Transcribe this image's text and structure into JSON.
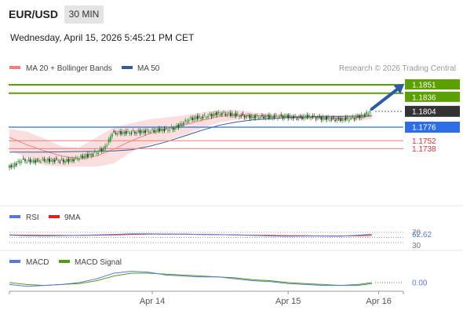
{
  "header": {
    "pair": "EUR/USD",
    "timeframe": "30 MIN",
    "datetime": "Wednesday, April 15, 2026 5:45:21 PM CET"
  },
  "legend": {
    "ma20": "MA 20 + Bollinger Bands",
    "ma50": "MA 50",
    "credit": "Research © 2026 Trading Central",
    "ma20_color": "#f08080",
    "ma50_color": "#3a5a98"
  },
  "chart_data": [
    {
      "type": "candlestick",
      "x_labels": [
        "Apr 14",
        "Apr 15",
        "Apr 16"
      ],
      "ylim": [
        1.17,
        1.186
      ],
      "current_price": "1.1804",
      "levels": [
        {
          "label": "1.1851",
          "value": 1.1851,
          "color": "#5aa000",
          "kind": "resistance"
        },
        {
          "label": "1.1836",
          "value": 1.1836,
          "color": "#5aa000",
          "kind": "resistance"
        },
        {
          "label": "1.1776",
          "value": 1.1776,
          "color": "#2d6ee6",
          "kind": "pivot"
        },
        {
          "label": "1.1752",
          "value": 1.1752,
          "color": "#e03030",
          "kind": "support"
        },
        {
          "label": "1.1738",
          "value": 1.1738,
          "color": "#e03030",
          "kind": "support"
        }
      ],
      "price_path": [
        [
          0,
          1.1704
        ],
        [
          4,
          1.171
        ],
        [
          8,
          1.1718
        ],
        [
          12,
          1.1716
        ],
        [
          16,
          1.1716
        ],
        [
          20,
          1.1718
        ],
        [
          24,
          1.1717
        ],
        [
          28,
          1.1718
        ],
        [
          32,
          1.1716
        ],
        [
          36,
          1.1718
        ],
        [
          40,
          1.1721
        ],
        [
          44,
          1.1725
        ],
        [
          48,
          1.1728
        ],
        [
          52,
          1.1733
        ],
        [
          56,
          1.1741
        ],
        [
          60,
          1.1766
        ],
        [
          64,
          1.1766
        ],
        [
          68,
          1.1767
        ],
        [
          72,
          1.1767
        ],
        [
          76,
          1.1768
        ],
        [
          80,
          1.1769
        ],
        [
          84,
          1.177
        ],
        [
          88,
          1.1772
        ],
        [
          92,
          1.1772
        ],
        [
          96,
          1.1775
        ],
        [
          100,
          1.1782
        ],
        [
          104,
          1.179
        ],
        [
          108,
          1.1793
        ],
        [
          112,
          1.1794
        ],
        [
          116,
          1.1797
        ],
        [
          120,
          1.18
        ],
        [
          124,
          1.18
        ],
        [
          128,
          1.1799
        ],
        [
          132,
          1.1797
        ],
        [
          136,
          1.1796
        ],
        [
          140,
          1.1794
        ],
        [
          144,
          1.1794
        ],
        [
          148,
          1.1795
        ],
        [
          152,
          1.1794
        ],
        [
          156,
          1.1795
        ],
        [
          160,
          1.1795
        ],
        [
          164,
          1.1793
        ],
        [
          168,
          1.1793
        ],
        [
          172,
          1.1795
        ],
        [
          176,
          1.1794
        ],
        [
          180,
          1.1792
        ],
        [
          184,
          1.1791
        ],
        [
          188,
          1.179
        ],
        [
          192,
          1.179
        ],
        [
          196,
          1.1791
        ],
        [
          200,
          1.1794
        ],
        [
          204,
          1.1796
        ],
        [
          208,
          1.1804
        ]
      ],
      "ma50": [
        [
          0,
          1.1732
        ],
        [
          20,
          1.1732
        ],
        [
          40,
          1.1733
        ],
        [
          60,
          1.1734
        ],
        [
          70,
          1.1736
        ],
        [
          80,
          1.1742
        ],
        [
          90,
          1.175
        ],
        [
          100,
          1.176
        ],
        [
          110,
          1.177
        ],
        [
          120,
          1.1779
        ],
        [
          130,
          1.1785
        ],
        [
          140,
          1.1789
        ],
        [
          150,
          1.1791
        ],
        [
          160,
          1.1793
        ],
        [
          170,
          1.1794
        ],
        [
          180,
          1.1795
        ],
        [
          190,
          1.1795
        ],
        [
          208,
          1.1796
        ]
      ],
      "ma20": [
        [
          0,
          1.1758
        ],
        [
          10,
          1.1745
        ],
        [
          20,
          1.1734
        ],
        [
          30,
          1.1725
        ],
        [
          40,
          1.172
        ],
        [
          50,
          1.1725
        ],
        [
          60,
          1.1737
        ],
        [
          70,
          1.1752
        ],
        [
          80,
          1.1764
        ],
        [
          90,
          1.1773
        ],
        [
          100,
          1.178
        ],
        [
          110,
          1.1788
        ],
        [
          120,
          1.1795
        ],
        [
          130,
          1.1797
        ],
        [
          140,
          1.1797
        ],
        [
          150,
          1.1796
        ],
        [
          160,
          1.1795
        ],
        [
          170,
          1.1794
        ],
        [
          180,
          1.1793
        ],
        [
          190,
          1.1792
        ],
        [
          200,
          1.1793
        ],
        [
          208,
          1.1796
        ]
      ],
      "bb_upper": [
        [
          0,
          1.1773
        ],
        [
          10,
          1.1768
        ],
        [
          20,
          1.1756
        ],
        [
          30,
          1.1742
        ],
        [
          40,
          1.174
        ],
        [
          50,
          1.1758
        ],
        [
          60,
          1.1776
        ],
        [
          70,
          1.1783
        ],
        [
          80,
          1.179
        ],
        [
          90,
          1.1793
        ],
        [
          100,
          1.1797
        ],
        [
          110,
          1.1802
        ],
        [
          120,
          1.1806
        ],
        [
          130,
          1.1807
        ],
        [
          140,
          1.1802
        ],
        [
          150,
          1.18
        ],
        [
          160,
          1.1799
        ],
        [
          170,
          1.1798
        ],
        [
          180,
          1.1797
        ],
        [
          190,
          1.1796
        ],
        [
          200,
          1.1799
        ],
        [
          208,
          1.1802
        ]
      ],
      "bb_lower": [
        [
          0,
          1.1735
        ],
        [
          10,
          1.1722
        ],
        [
          20,
          1.1708
        ],
        [
          30,
          1.1706
        ],
        [
          40,
          1.1706
        ],
        [
          50,
          1.1706
        ],
        [
          60,
          1.1712
        ],
        [
          70,
          1.1732
        ],
        [
          80,
          1.1745
        ],
        [
          90,
          1.1752
        ],
        [
          100,
          1.1762
        ],
        [
          110,
          1.1774
        ],
        [
          120,
          1.1784
        ],
        [
          130,
          1.1789
        ],
        [
          140,
          1.1791
        ],
        [
          150,
          1.1792
        ],
        [
          160,
          1.1791
        ],
        [
          170,
          1.179
        ],
        [
          180,
          1.1789
        ],
        [
          190,
          1.1788
        ],
        [
          200,
          1.1788
        ],
        [
          208,
          1.179
        ]
      ],
      "forecast_arrow": {
        "from": [
          208,
          1.1808
        ],
        "to": [
          226,
          1.1851
        ]
      }
    },
    {
      "type": "line",
      "title": "RSI",
      "legend": [
        "RSI",
        "9MA"
      ],
      "colors": {
        "RSI": "#5a78d8",
        "9MA": "#e02020"
      },
      "ylim": [
        25,
        75
      ],
      "levels": [
        "70",
        "50",
        "30"
      ],
      "value_label": "62.62",
      "rsi": [
        [
          0,
          59
        ],
        [
          10,
          57
        ],
        [
          20,
          56
        ],
        [
          30,
          57
        ],
        [
          40,
          58
        ],
        [
          50,
          60
        ],
        [
          60,
          62
        ],
        [
          70,
          64
        ],
        [
          80,
          64
        ],
        [
          90,
          63
        ],
        [
          100,
          63
        ],
        [
          110,
          62
        ],
        [
          120,
          61
        ],
        [
          130,
          60
        ],
        [
          140,
          58
        ],
        [
          150,
          56
        ],
        [
          160,
          55
        ],
        [
          170,
          56
        ],
        [
          180,
          56
        ],
        [
          190,
          55
        ],
        [
          200,
          59
        ],
        [
          208,
          62.62
        ]
      ],
      "ma9": [
        [
          0,
          60
        ],
        [
          10,
          59
        ],
        [
          20,
          58
        ],
        [
          30,
          58
        ],
        [
          40,
          58
        ],
        [
          50,
          59
        ],
        [
          60,
          60
        ],
        [
          70,
          62
        ],
        [
          80,
          63
        ],
        [
          90,
          63
        ],
        [
          100,
          63
        ],
        [
          110,
          62
        ],
        [
          120,
          61
        ],
        [
          130,
          60
        ],
        [
          140,
          59
        ],
        [
          150,
          58
        ],
        [
          160,
          57
        ],
        [
          170,
          57
        ],
        [
          180,
          56
        ],
        [
          190,
          56
        ],
        [
          200,
          57
        ],
        [
          208,
          58
        ]
      ]
    },
    {
      "type": "line",
      "title": "MACD",
      "legend": [
        "MACD",
        "MACD Signal"
      ],
      "colors": {
        "MACD": "#5a78d8",
        "MACD Signal": "#50a010"
      },
      "ylim": [
        -0.001,
        0.0018
      ],
      "value_label": "0.00",
      "macd": [
        [
          0,
          -0.0002
        ],
        [
          10,
          -0.0004
        ],
        [
          20,
          -0.0003
        ],
        [
          30,
          -0.0002
        ],
        [
          40,
          0.0
        ],
        [
          50,
          0.0004
        ],
        [
          60,
          0.001
        ],
        [
          70,
          0.0012
        ],
        [
          80,
          0.0011
        ],
        [
          90,
          0.0008
        ],
        [
          100,
          0.0007
        ],
        [
          110,
          0.0006
        ],
        [
          120,
          0.0006
        ],
        [
          130,
          0.0004
        ],
        [
          140,
          0.0002
        ],
        [
          150,
          0.0001
        ],
        [
          160,
          -0.0001
        ],
        [
          170,
          -0.0002
        ],
        [
          180,
          -0.0003
        ],
        [
          190,
          -0.0003
        ],
        [
          200,
          -0.0002
        ],
        [
          208,
          0.0
        ]
      ],
      "signal": [
        [
          0,
          0.0
        ],
        [
          10,
          -0.0002
        ],
        [
          20,
          -0.0003
        ],
        [
          30,
          -0.0002
        ],
        [
          40,
          -0.0001
        ],
        [
          50,
          0.0002
        ],
        [
          60,
          0.0007
        ],
        [
          70,
          0.001
        ],
        [
          80,
          0.001
        ],
        [
          90,
          0.0009
        ],
        [
          100,
          0.0008
        ],
        [
          110,
          0.0007
        ],
        [
          120,
          0.0006
        ],
        [
          130,
          0.0005
        ],
        [
          140,
          0.0003
        ],
        [
          150,
          0.0002
        ],
        [
          160,
          0.0
        ],
        [
          170,
          -0.0001
        ],
        [
          180,
          -0.0002
        ],
        [
          190,
          -0.0003
        ],
        [
          200,
          -0.0003
        ],
        [
          208,
          -0.0001
        ]
      ]
    }
  ]
}
